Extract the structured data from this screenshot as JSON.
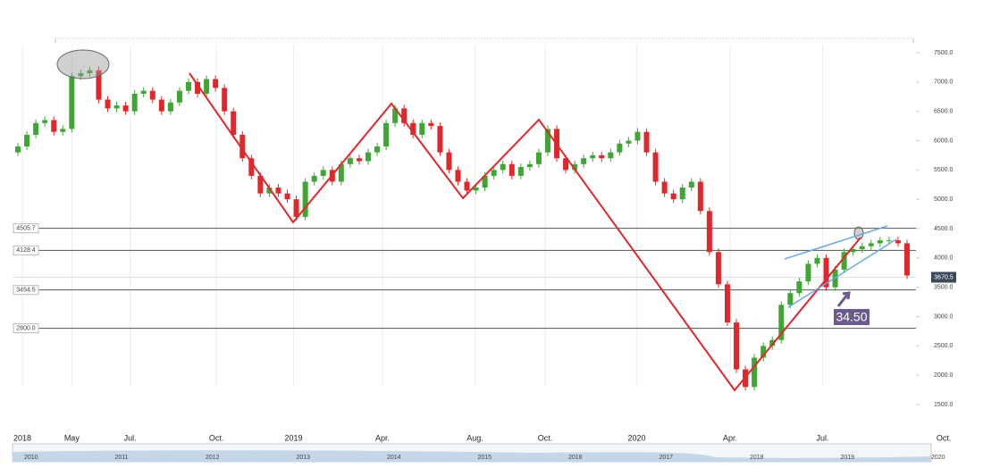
{
  "chart_data": {
    "type": "candlestick",
    "up_color": "#3fa535",
    "down_color": "#e0282c",
    "xlim": [
      0,
      100
    ],
    "xticks": [
      {
        "value": 1,
        "label": "2018"
      },
      {
        "value": 6.5,
        "label": "May"
      },
      {
        "value": 13,
        "label": "Jul."
      },
      {
        "value": 22.6,
        "label": "Oct."
      },
      {
        "value": 31.2,
        "label": "2019"
      },
      {
        "value": 41.1,
        "label": "Apr."
      },
      {
        "value": 51.4,
        "label": "Aug."
      },
      {
        "value": 59.2,
        "label": "Oct."
      },
      {
        "value": 69.4,
        "label": "2020"
      },
      {
        "value": 79.8,
        "label": "Apr."
      },
      {
        "value": 90.1,
        "label": "Jul."
      },
      {
        "value": 103.6,
        "label": "Oct."
      }
    ],
    "ylim": [
      1500,
      7500
    ],
    "yticks": [
      {
        "value": 1500,
        "label": "1500.0"
      },
      {
        "value": 2000,
        "label": "2000.0"
      },
      {
        "value": 2500,
        "label": "2500.0"
      },
      {
        "value": 3000,
        "label": "3000.0"
      },
      {
        "value": 3500,
        "label": "3500.0"
      },
      {
        "value": 4000,
        "label": "4000.0"
      },
      {
        "value": 4500,
        "label": "4500.0"
      },
      {
        "value": 5000,
        "label": "5000.0"
      },
      {
        "value": 5500,
        "label": "5500.0"
      },
      {
        "value": 6000,
        "label": "6000.0"
      },
      {
        "value": 6500,
        "label": "6500.0"
      },
      {
        "value": 7000,
        "label": "7000.0"
      },
      {
        "value": 7500,
        "label": "7500.0"
      }
    ],
    "levels": [
      4505.7,
      4128.4,
      3454.5,
      {
        "value": 2800,
        "label": "2800.0"
      }
    ],
    "last_price": 3670.5,
    "annotation": "34.50",
    "open": [
      5800,
      5900,
      6100,
      6300,
      6350,
      6150,
      6200,
      7100,
      7150,
      7200,
      6700,
      6550,
      6600,
      6500,
      6800,
      6850,
      6700,
      6500,
      6650,
      6850,
      7000,
      6800,
      7050,
      6900,
      6500,
      6100,
      5700,
      5400,
      5100,
      5200,
      5100,
      5000,
      4700,
      5300,
      5400,
      5500,
      5300,
      5600,
      5700,
      5650,
      5800,
      5900,
      6300,
      6550,
      6300,
      6100,
      6300,
      6250,
      5800,
      5500,
      5300,
      5150,
      5200,
      5400,
      5500,
      5600,
      5400,
      5550,
      5600,
      5800,
      6200,
      5700,
      5500,
      5600,
      5700,
      5750,
      5700,
      5800,
      5950,
      6000,
      6150,
      5800,
      5300,
      5100,
      5000,
      5200,
      5300,
      4800,
      4100,
      3550,
      2900,
      2100,
      1800,
      2300,
      2500,
      2600,
      3200,
      3400,
      3600,
      3900,
      4000,
      3500,
      3800,
      4100,
      4150,
      4200,
      4250,
      4300,
      4300,
      4250
    ],
    "close": [
      5900,
      6100,
      6300,
      6350,
      6150,
      6200,
      7100,
      7150,
      7200,
      6700,
      6550,
      6600,
      6500,
      6800,
      6850,
      6700,
      6500,
      6650,
      6850,
      7000,
      6800,
      7050,
      6900,
      6500,
      6100,
      5700,
      5400,
      5100,
      5200,
      5100,
      5000,
      4700,
      5300,
      5400,
      5500,
      5300,
      5600,
      5700,
      5650,
      5800,
      5900,
      6300,
      6550,
      6300,
      6100,
      6300,
      6250,
      5800,
      5500,
      5300,
      5150,
      5200,
      5400,
      5500,
      5600,
      5400,
      5550,
      5600,
      5800,
      6200,
      5700,
      5500,
      5600,
      5700,
      5750,
      5700,
      5800,
      5950,
      6000,
      6150,
      5800,
      5300,
      5100,
      5000,
      5200,
      5300,
      4800,
      4100,
      3550,
      2900,
      2100,
      1800,
      2300,
      2500,
      2600,
      3200,
      3400,
      3600,
      3900,
      4000,
      3500,
      3800,
      4100,
      4150,
      4200,
      4250,
      4300,
      4300,
      4250,
      3700
    ],
    "navigator_years": [
      "2010",
      "2011",
      "2012",
      "2013",
      "2014",
      "2015",
      "2016",
      "2017",
      "2018",
      "2019",
      "2020"
    ]
  }
}
